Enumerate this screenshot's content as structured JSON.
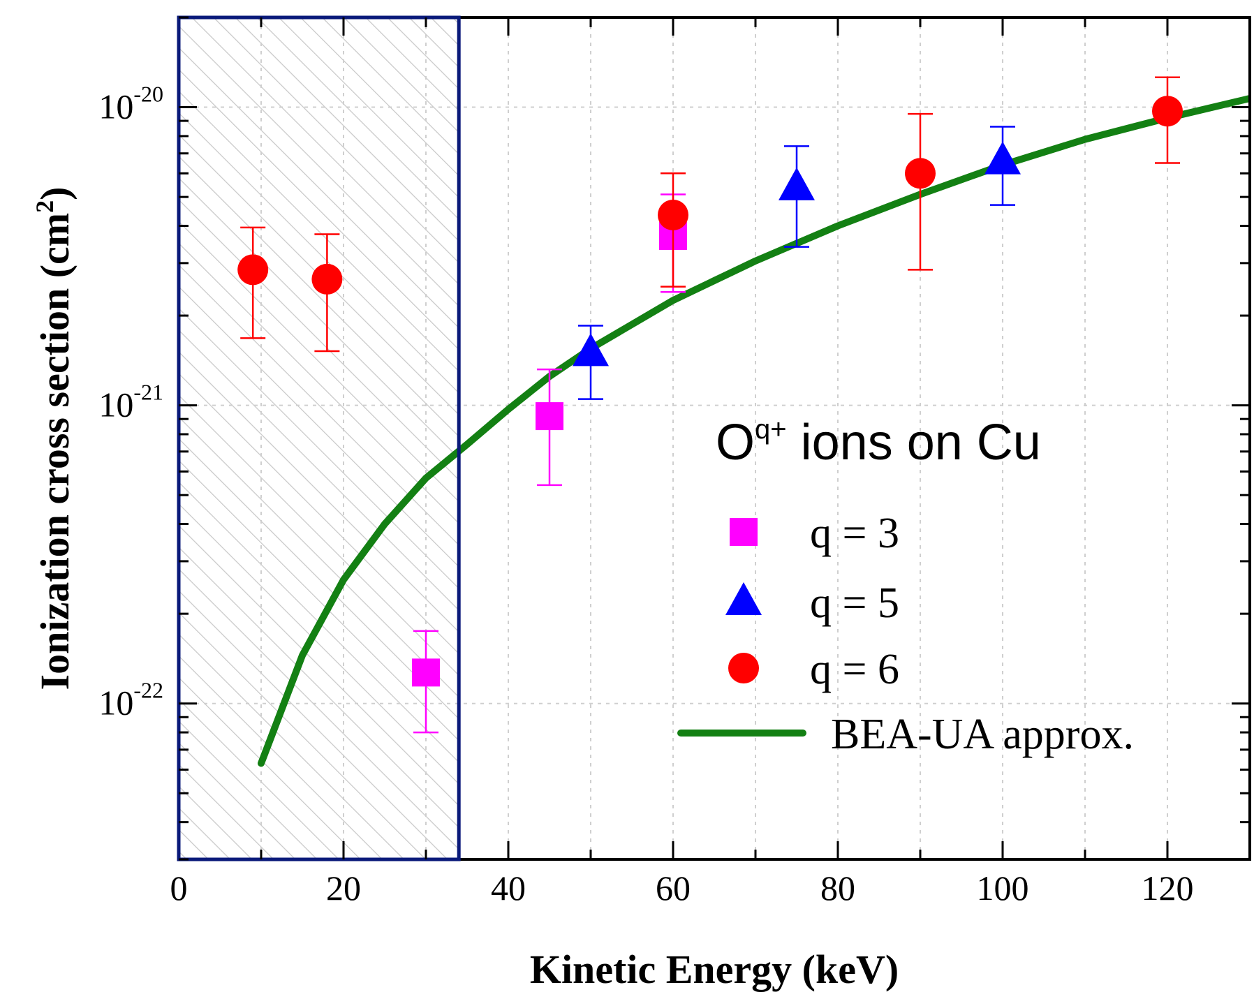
{
  "chart_data": {
    "type": "scatter",
    "xlabel": "Kinetic Energy (keV)",
    "ylabel_main": "Ionization cross section (cm",
    "ylabel_sup": "2",
    "ylabel_close": ")",
    "xlim": [
      0,
      130
    ],
    "ylim": [
      3e-23,
      2e-20
    ],
    "y_scale": "log",
    "x_ticks": [
      0,
      20,
      40,
      60,
      80,
      100,
      120
    ],
    "y_ticks": [
      {
        "value": 1e-22,
        "base": "10",
        "exp": "-22"
      },
      {
        "value": 1e-21,
        "base": "10",
        "exp": "-21"
      },
      {
        "value": 1e-20,
        "base": "10",
        "exp": "-20"
      }
    ],
    "grid": true,
    "shaded_region": {
      "x": [
        0,
        34
      ],
      "pattern": "hatched",
      "border_color": "#0a1a7a"
    },
    "legend": {
      "placement": "right",
      "title_base": "O",
      "title_sup": "q+",
      "title_rest": " ions  on Cu"
    },
    "series": [
      {
        "name": "q = 3",
        "marker": "square",
        "color": "#ff00ff",
        "points": [
          {
            "x": 30,
            "y": 1.27e-22,
            "ylo": 8e-23,
            "yhi": 1.75e-22
          },
          {
            "x": 45,
            "y": 9.2e-22,
            "ylo": 5.4e-22,
            "yhi": 1.32e-21
          },
          {
            "x": 60,
            "y": 3.7e-21,
            "ylo": 2.4e-21,
            "yhi": 5.1e-21
          }
        ]
      },
      {
        "name": "q = 5",
        "marker": "triangle",
        "color": "#0000ff",
        "points": [
          {
            "x": 50,
            "y": 1.5e-21,
            "ylo": 1.05e-21,
            "yhi": 1.85e-21
          },
          {
            "x": 75,
            "y": 5.4e-21,
            "ylo": 3.4e-21,
            "yhi": 7.4e-21
          },
          {
            "x": 100,
            "y": 6.6e-21,
            "ylo": 4.7e-21,
            "yhi": 8.6e-21
          }
        ]
      },
      {
        "name": "q = 6",
        "marker": "circle",
        "color": "#ff0000",
        "points": [
          {
            "x": 9,
            "y": 2.85e-21,
            "ylo": 1.68e-21,
            "yhi": 3.95e-21
          },
          {
            "x": 18,
            "y": 2.65e-21,
            "ylo": 1.52e-21,
            "yhi": 3.75e-21
          },
          {
            "x": 60,
            "y": 4.35e-21,
            "ylo": 2.5e-21,
            "yhi": 6e-21
          },
          {
            "x": 90,
            "y": 6e-21,
            "ylo": 2.85e-21,
            "yhi": 9.5e-21
          },
          {
            "x": 120,
            "y": 9.7e-21,
            "ylo": 6.5e-21,
            "yhi": 1.26e-20
          }
        ]
      },
      {
        "name": "BEA-UA approx.",
        "marker": "line",
        "color": "#138013",
        "points": [
          {
            "x": 10,
            "y": 6.3e-23
          },
          {
            "x": 15,
            "y": 1.45e-22
          },
          {
            "x": 20,
            "y": 2.6e-22
          },
          {
            "x": 25,
            "y": 4e-22
          },
          {
            "x": 30,
            "y": 5.7e-22
          },
          {
            "x": 35,
            "y": 7.4e-22
          },
          {
            "x": 40,
            "y": 9.7e-22
          },
          {
            "x": 45,
            "y": 1.25e-21
          },
          {
            "x": 50,
            "y": 1.55e-21
          },
          {
            "x": 60,
            "y": 2.25e-21
          },
          {
            "x": 70,
            "y": 3.05e-21
          },
          {
            "x": 80,
            "y": 4e-21
          },
          {
            "x": 90,
            "y": 5.1e-21
          },
          {
            "x": 100,
            "y": 6.4e-21
          },
          {
            "x": 110,
            "y": 7.8e-21
          },
          {
            "x": 120,
            "y": 9.2e-21
          },
          {
            "x": 130,
            "y": 1.07e-20
          }
        ]
      }
    ]
  }
}
